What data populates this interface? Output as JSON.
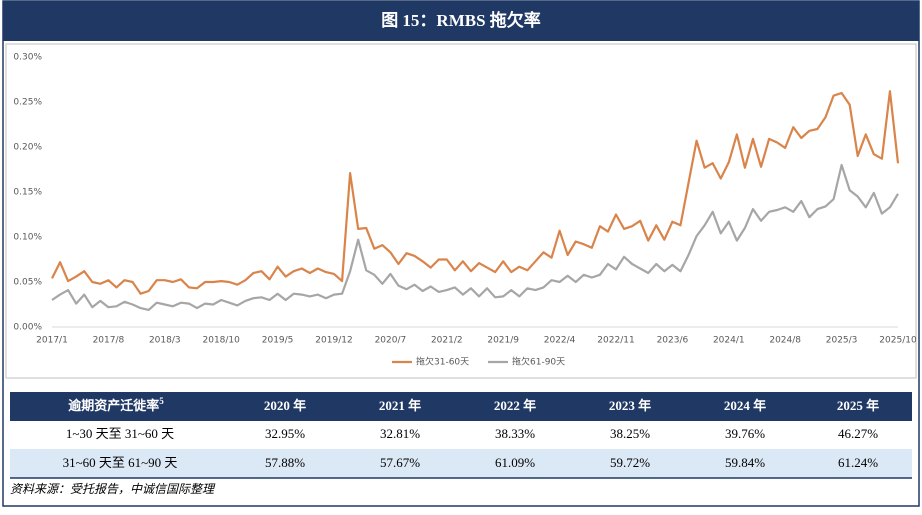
{
  "chart_data": {
    "type": "line",
    "title": "图 15：RMBS 拖欠率",
    "categories": [
      "2017/1",
      null,
      null,
      null,
      null,
      null,
      null,
      "2017/8",
      null,
      null,
      null,
      null,
      null,
      null,
      "2018/3",
      null,
      null,
      null,
      null,
      null,
      null,
      "2018/10",
      null,
      null,
      null,
      null,
      null,
      null,
      "2019/5",
      null,
      null,
      null,
      null,
      null,
      null,
      "2019/12",
      null,
      null,
      null,
      null,
      null,
      null,
      "2020/7",
      null,
      null,
      null,
      null,
      null,
      null,
      "2021/2",
      null,
      null,
      null,
      null,
      null,
      null,
      "2021/9",
      null,
      null,
      null,
      null,
      null,
      null,
      "2022/4",
      null,
      null,
      null,
      null,
      null,
      null,
      "2022/11",
      null,
      null,
      null,
      null,
      null,
      null,
      "2023/6",
      null,
      null,
      null,
      null,
      null,
      null,
      "2024/1",
      null,
      null,
      null,
      null,
      null,
      null,
      "2024/8",
      null,
      null,
      null,
      null,
      null,
      null,
      "2025/3",
      null,
      null,
      null,
      null,
      null,
      null,
      "2025/10"
    ],
    "series": [
      {
        "name": "拖欠31-60天",
        "color": "#d9844a",
        "values": [
          0.054,
          0.072,
          0.051,
          0.056,
          0.062,
          0.05,
          0.048,
          0.052,
          0.044,
          0.052,
          0.05,
          0.037,
          0.04,
          0.052,
          0.052,
          0.05,
          0.053,
          0.044,
          0.043,
          0.05,
          0.05,
          0.051,
          0.05,
          0.047,
          0.052,
          0.06,
          0.062,
          0.053,
          0.067,
          0.056,
          0.062,
          0.065,
          0.06,
          0.065,
          0.061,
          0.059,
          0.051,
          0.171,
          0.109,
          0.11,
          0.087,
          0.091,
          0.083,
          0.07,
          0.082,
          0.079,
          0.073,
          0.066,
          0.075,
          0.075,
          0.063,
          0.073,
          0.062,
          0.071,
          0.066,
          0.061,
          0.073,
          0.061,
          0.067,
          0.063,
          0.073,
          0.083,
          0.077,
          0.107,
          0.08,
          0.095,
          0.092,
          0.088,
          0.112,
          0.106,
          0.125,
          0.109,
          0.112,
          0.118,
          0.096,
          0.113,
          0.097,
          0.117,
          0.113,
          0.16,
          0.207,
          0.177,
          0.182,
          0.165,
          0.183,
          0.214,
          0.177,
          0.209,
          0.178,
          0.209,
          0.205,
          0.199,
          0.222,
          0.21,
          0.218,
          0.22,
          0.233,
          0.257,
          0.26,
          0.247,
          0.19,
          0.214,
          0.192,
          0.187,
          0.262,
          0.182
        ]
      },
      {
        "name": "拖欠61-90天",
        "color": "#a6a6a6",
        "values": [
          0.03,
          0.036,
          0.041,
          0.026,
          0.036,
          0.022,
          0.029,
          0.022,
          0.023,
          0.028,
          0.025,
          0.021,
          0.019,
          0.027,
          0.025,
          0.023,
          0.027,
          0.026,
          0.021,
          0.026,
          0.025,
          0.03,
          0.027,
          0.024,
          0.029,
          0.032,
          0.033,
          0.03,
          0.037,
          0.03,
          0.037,
          0.036,
          0.034,
          0.036,
          0.032,
          0.036,
          0.037,
          0.062,
          0.097,
          0.063,
          0.058,
          0.048,
          0.059,
          0.046,
          0.042,
          0.047,
          0.04,
          0.045,
          0.039,
          0.041,
          0.044,
          0.036,
          0.043,
          0.034,
          0.043,
          0.033,
          0.034,
          0.041,
          0.034,
          0.043,
          0.041,
          0.044,
          0.052,
          0.05,
          0.057,
          0.05,
          0.058,
          0.055,
          0.058,
          0.07,
          0.064,
          0.078,
          0.07,
          0.065,
          0.06,
          0.07,
          0.062,
          0.069,
          0.062,
          0.08,
          0.101,
          0.113,
          0.128,
          0.104,
          0.117,
          0.096,
          0.11,
          0.131,
          0.118,
          0.128,
          0.13,
          0.133,
          0.128,
          0.14,
          0.122,
          0.131,
          0.134,
          0.142,
          0.18,
          0.152,
          0.145,
          0.133,
          0.149,
          0.126,
          0.133,
          0.148
        ]
      }
    ],
    "ylim": [
      0,
      0.3
    ],
    "yticks": [
      {
        "value": 0,
        "label": "0.00%"
      },
      {
        "value": 0.05,
        "label": "0.05%"
      },
      {
        "value": 0.1,
        "label": "0.10%"
      },
      {
        "value": 0.15,
        "label": "0.15%"
      },
      {
        "value": 0.2,
        "label": "0.20%"
      },
      {
        "value": 0.25,
        "label": "0.25%"
      },
      {
        "value": 0.3,
        "label": "0.30%"
      }
    ],
    "grid": false,
    "legend": "bottom"
  },
  "table": {
    "header": [
      {
        "text": "逾期资产迁徙率",
        "sup": "5"
      },
      "2020 年",
      "2021 年",
      "2022 年",
      "2023 年",
      "2024 年",
      "2025 年"
    ],
    "rows": [
      [
        "1~30 天至 31~60 天",
        "32.95%",
        "32.81%",
        "38.33%",
        "38.25%",
        "39.76%",
        "46.27%"
      ],
      [
        "31~60 天至 61~90 天",
        "57.88%",
        "57.67%",
        "61.09%",
        "59.72%",
        "59.84%",
        "61.24%"
      ]
    ]
  },
  "source": "资料来源：受托报告，中诚信国际整理"
}
